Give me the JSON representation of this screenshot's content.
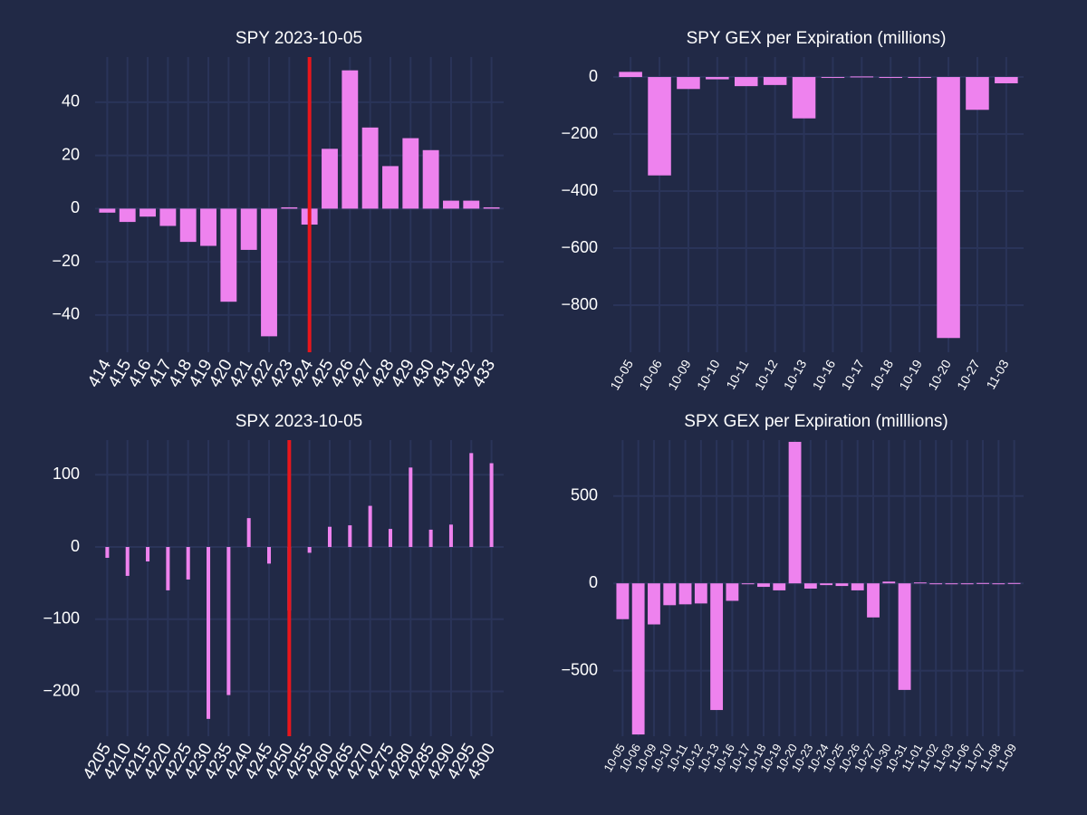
{
  "figure": {
    "background": "#212946",
    "grid_color": "#2A3459",
    "bar_color": "#EE82EE",
    "marker_color": "#E8161C"
  },
  "chart_data": [
    {
      "id": "spy-strike",
      "type": "bar",
      "title": "SPY  2023-10-05",
      "xlabel": "",
      "ylabel": "",
      "categories": [
        "414",
        "415",
        "416",
        "417",
        "418",
        "419",
        "420",
        "421",
        "422",
        "423",
        "424",
        "425",
        "426",
        "427",
        "428",
        "429",
        "430",
        "431",
        "432",
        "433"
      ],
      "values": [
        -1.5,
        -5,
        -3,
        -6.5,
        -12.5,
        -14,
        -35,
        -15.5,
        -48,
        0.5,
        -6,
        22.5,
        52,
        30.5,
        16,
        26.5,
        22,
        3,
        3,
        0.5
      ],
      "ylim": [
        -54,
        57
      ],
      "yticks": [
        -40,
        -20,
        0,
        20,
        40
      ],
      "ytick_labels": [
        "−40",
        "−20",
        "0",
        "20",
        "40"
      ],
      "marker_line": 424,
      "grid": true
    },
    {
      "id": "spy-expiration",
      "type": "bar",
      "title": "SPY GEX per Expiration (millions)",
      "xlabel": "",
      "ylabel": "",
      "categories": [
        "10-05",
        "10-06",
        "10-09",
        "10-10",
        "10-11",
        "10-12",
        "10-13",
        "10-16",
        "10-17",
        "10-18",
        "10-19",
        "10-20",
        "10-27",
        "11-03"
      ],
      "values": [
        18,
        -345,
        -42,
        -8,
        -32,
        -28,
        -145,
        0,
        2,
        0,
        0,
        -915,
        -115,
        -22
      ],
      "ylim": [
        -965,
        70
      ],
      "yticks": [
        -800,
        -600,
        -400,
        -200,
        0
      ],
      "ytick_labels": [
        "−800",
        "−600",
        "−400",
        "−200",
        "0"
      ],
      "grid": true
    },
    {
      "id": "spx-strike",
      "type": "bar",
      "title": "SPX   2023-10-05",
      "xlabel": "",
      "ylabel": "",
      "categories": [
        "4205",
        "4210",
        "4215",
        "4220",
        "4225",
        "4230",
        "4235",
        "4240",
        "4245",
        "4250",
        "4255",
        "4260",
        "4265",
        "4270",
        "4275",
        "4280",
        "4285",
        "4290",
        "4295",
        "4300"
      ],
      "values": [
        -15,
        -40,
        -20,
        -60,
        -45,
        -238,
        -205,
        40,
        -23,
        -88,
        -8,
        28,
        30,
        57,
        25,
        110,
        24,
        31,
        130,
        116
      ],
      "ylim": [
        -262,
        148
      ],
      "yticks": [
        -200,
        -100,
        0,
        100
      ],
      "ytick_labels": [
        "−200",
        "−100",
        "0",
        "100"
      ],
      "marker_line": 4250,
      "grid": true
    },
    {
      "id": "spx-expiration",
      "type": "bar",
      "title": "SPX GEX per Expiration (milllions)",
      "xlabel": "",
      "ylabel": "",
      "categories": [
        "10-05",
        "10-06",
        "10-09",
        "10-10",
        "10-11",
        "10-12",
        "10-13",
        "10-16",
        "10-17",
        "10-18",
        "10-19",
        "10-20",
        "10-23",
        "10-24",
        "10-25",
        "10-26",
        "10-27",
        "10-30",
        "10-31",
        "11-01",
        "11-02",
        "11-03",
        "11-06",
        "11-07",
        "11-08",
        "11-09"
      ],
      "values": [
        -205,
        -865,
        -235,
        -125,
        -120,
        -115,
        -725,
        -100,
        -5,
        -20,
        -40,
        810,
        -30,
        -10,
        -15,
        -40,
        -195,
        10,
        -610,
        5,
        -5,
        -5,
        0,
        2,
        0,
        2
      ],
      "ylim": [
        -875,
        820
      ],
      "yticks": [
        -500,
        0,
        500
      ],
      "ytick_labels": [
        "−500",
        "0",
        "500"
      ],
      "grid": true
    }
  ]
}
